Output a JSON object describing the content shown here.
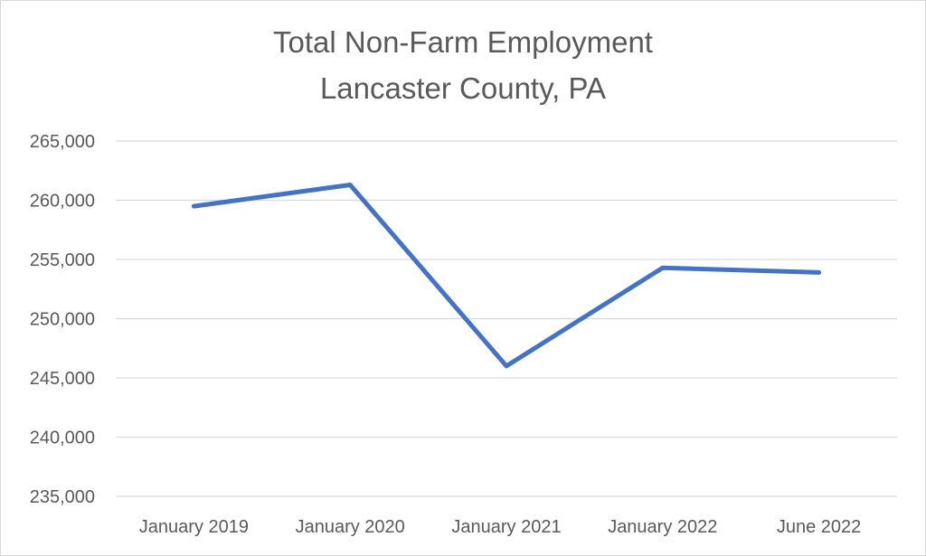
{
  "chart_data": {
    "type": "line",
    "title": "Total Non-Farm Employment",
    "subtitle": "Lancaster County, PA",
    "categories": [
      "January 2019",
      "January 2020",
      "January 2021",
      "January 2022",
      "June 2022"
    ],
    "series": [
      {
        "values": [
          259500,
          261300,
          246000,
          254300,
          253900
        ],
        "color": "#4472c4"
      }
    ],
    "y_ticks": [
      "265,000",
      "260,000",
      "255,000",
      "250,000",
      "245,000",
      "240,000",
      "235,000"
    ],
    "ylim": [
      235000,
      265000
    ],
    "y_step": 5000,
    "grid": true,
    "legend": "none"
  }
}
